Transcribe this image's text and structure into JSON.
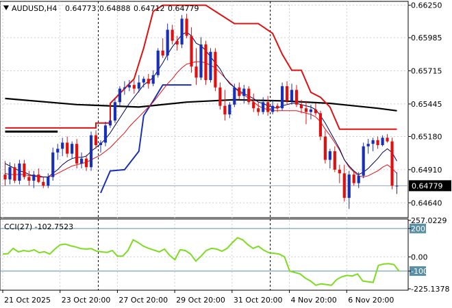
{
  "chart_data": [
    {
      "type": "candlestick",
      "title": "AUDUSD,H4",
      "ohlc": [
        "0.64773",
        "0.64888",
        "0.64712",
        "0.64779"
      ],
      "price_ticks": [
        "0.66250",
        "0.65985",
        "0.65715",
        "0.65445",
        "0.65180",
        "0.64910",
        "0.64640"
      ],
      "ylim": [
        0.6453,
        0.6627
      ],
      "last_price": "0.64779",
      "x_labels": [
        "21 Oct 2025",
        "23 Oct 20:00",
        "27 Oct 20:00",
        "29 Oct 20:00",
        "31 Oct 20:00",
        "4 Nov 20:00",
        "6 Nov 20:00"
      ],
      "colors": {
        "bull": "#1a2fb8",
        "bear": "#e01010",
        "ma_fast": "#000060",
        "ma_mid": "#e01010",
        "ma_long": "#000000",
        "envelope_up": "#e01010",
        "envelope_dn": "#1a2fb8",
        "grid": "#c7cfd6"
      },
      "candles": [
        [
          0.6487,
          0.6498,
          0.6478,
          0.6483
        ],
        [
          0.6483,
          0.6497,
          0.6479,
          0.6493
        ],
        [
          0.6493,
          0.6496,
          0.648,
          0.6482
        ],
        [
          0.6482,
          0.6499,
          0.6479,
          0.6496
        ],
        [
          0.6496,
          0.6499,
          0.6483,
          0.6485
        ],
        [
          0.6485,
          0.649,
          0.6478,
          0.6482
        ],
        [
          0.6482,
          0.649,
          0.6476,
          0.6487
        ],
        [
          0.6487,
          0.6492,
          0.648,
          0.6481
        ],
        [
          0.6481,
          0.6485,
          0.6476,
          0.6478
        ],
        [
          0.6478,
          0.6488,
          0.6476,
          0.6485
        ],
        [
          0.6485,
          0.6509,
          0.6482,
          0.6505
        ],
        [
          0.6505,
          0.6512,
          0.6499,
          0.6508
        ],
        [
          0.6508,
          0.6517,
          0.6502,
          0.6513
        ],
        [
          0.6513,
          0.6518,
          0.6501,
          0.6504
        ],
        [
          0.6504,
          0.6514,
          0.65,
          0.6512
        ],
        [
          0.6512,
          0.6516,
          0.6492,
          0.6496
        ],
        [
          0.6496,
          0.6505,
          0.6492,
          0.65
        ],
        [
          0.65,
          0.6503,
          0.649,
          0.6493
        ],
        [
          0.6493,
          0.6522,
          0.649,
          0.6519
        ],
        [
          0.6519,
          0.6523,
          0.6508,
          0.6511
        ],
        [
          0.6511,
          0.6515,
          0.6505,
          0.6513
        ],
        [
          0.6513,
          0.653,
          0.651,
          0.6527
        ],
        [
          0.6527,
          0.6532,
          0.6525,
          0.6531
        ],
        [
          0.6531,
          0.6549,
          0.6529,
          0.6546
        ],
        [
          0.6546,
          0.6559,
          0.6543,
          0.6557
        ],
        [
          0.6557,
          0.6563,
          0.6552,
          0.6558
        ],
        [
          0.6558,
          0.6564,
          0.6555,
          0.656
        ],
        [
          0.656,
          0.6564,
          0.6553,
          0.6557
        ],
        [
          0.6557,
          0.6568,
          0.6554,
          0.6562
        ],
        [
          0.6562,
          0.6567,
          0.6558,
          0.6565
        ],
        [
          0.6565,
          0.6569,
          0.6557,
          0.6561
        ],
        [
          0.6561,
          0.6572,
          0.6559,
          0.6568
        ],
        [
          0.6568,
          0.659,
          0.6566,
          0.6588
        ],
        [
          0.6588,
          0.6598,
          0.6582,
          0.6584
        ],
        [
          0.6584,
          0.661,
          0.658,
          0.6605
        ],
        [
          0.6605,
          0.6609,
          0.6593,
          0.6596
        ],
        [
          0.6596,
          0.66,
          0.6588,
          0.6593
        ],
        [
          0.6593,
          0.6617,
          0.659,
          0.6614
        ],
        [
          0.6614,
          0.6618,
          0.6598,
          0.66
        ],
        [
          0.66,
          0.6607,
          0.657,
          0.6575
        ],
        [
          0.6575,
          0.659,
          0.656,
          0.6566
        ],
        [
          0.6566,
          0.6599,
          0.6564,
          0.6593
        ],
        [
          0.6593,
          0.6596,
          0.656,
          0.6564
        ],
        [
          0.6564,
          0.659,
          0.6562,
          0.6587
        ],
        [
          0.6587,
          0.659,
          0.6555,
          0.6558
        ],
        [
          0.6558,
          0.6562,
          0.654,
          0.6543
        ],
        [
          0.6543,
          0.6556,
          0.6531,
          0.6536
        ],
        [
          0.6536,
          0.6546,
          0.6533,
          0.6544
        ],
        [
          0.6544,
          0.6561,
          0.6542,
          0.6558
        ],
        [
          0.6558,
          0.6562,
          0.6548,
          0.6551
        ],
        [
          0.6551,
          0.656,
          0.6545,
          0.6557
        ],
        [
          0.6557,
          0.6559,
          0.6544,
          0.6546
        ],
        [
          0.6546,
          0.6553,
          0.6538,
          0.6541
        ],
        [
          0.6541,
          0.6546,
          0.6535,
          0.6538
        ],
        [
          0.6538,
          0.655,
          0.6536,
          0.6546
        ],
        [
          0.6546,
          0.6551,
          0.6535,
          0.6538
        ],
        [
          0.6538,
          0.6548,
          0.6536,
          0.6543
        ],
        [
          0.6543,
          0.6545,
          0.6538,
          0.6541
        ],
        [
          0.6541,
          0.6562,
          0.6539,
          0.6559
        ],
        [
          0.6559,
          0.6563,
          0.6544,
          0.6547
        ],
        [
          0.6547,
          0.6561,
          0.6544,
          0.6556
        ],
        [
          0.6556,
          0.656,
          0.6542,
          0.6544
        ],
        [
          0.6544,
          0.6548,
          0.6537,
          0.6541
        ],
        [
          0.6541,
          0.6547,
          0.6528,
          0.6538
        ],
        [
          0.6538,
          0.6544,
          0.6532,
          0.654
        ],
        [
          0.654,
          0.6545,
          0.6535,
          0.6537
        ],
        [
          0.6537,
          0.6539,
          0.6515,
          0.6518
        ],
        [
          0.6518,
          0.6523,
          0.6496,
          0.6499
        ],
        [
          0.6499,
          0.6508,
          0.6492,
          0.6506
        ],
        [
          0.6506,
          0.651,
          0.6489,
          0.6491
        ],
        [
          0.6491,
          0.6495,
          0.648,
          0.6488
        ],
        [
          0.6488,
          0.6495,
          0.6465,
          0.6468
        ],
        [
          0.6468,
          0.649,
          0.6459,
          0.6487
        ],
        [
          0.6487,
          0.649,
          0.6478,
          0.648
        ],
        [
          0.648,
          0.6489,
          0.6476,
          0.6486
        ],
        [
          0.6486,
          0.6513,
          0.6484,
          0.651
        ],
        [
          0.651,
          0.6516,
          0.6504,
          0.6512
        ],
        [
          0.6512,
          0.6517,
          0.6506,
          0.6515
        ],
        [
          0.6515,
          0.6518,
          0.6508,
          0.6511
        ],
        [
          0.6511,
          0.6519,
          0.651,
          0.6517
        ],
        [
          0.6517,
          0.652,
          0.6513,
          0.6514
        ],
        [
          0.6514,
          0.6517,
          0.6475,
          0.6478
        ],
        [
          0.64773,
          0.64888,
          0.64712,
          0.64779
        ]
      ],
      "ma_fast": [
        0.6496,
        0.6494,
        0.6492,
        0.649,
        0.6489,
        0.6487,
        0.6486,
        0.6485,
        0.6485,
        0.6485,
        0.6488,
        0.6491,
        0.6495,
        0.6498,
        0.65,
        0.6501,
        0.6501,
        0.6502,
        0.6506,
        0.6509,
        0.6512,
        0.6516,
        0.6521,
        0.6527,
        0.6533,
        0.6539,
        0.6545,
        0.655,
        0.6555,
        0.656,
        0.6563,
        0.6566,
        0.6572,
        0.6578,
        0.6585,
        0.6591,
        0.6596,
        0.6601,
        0.6603,
        0.66,
        0.6594,
        0.6592,
        0.6588,
        0.6583,
        0.6578,
        0.6573,
        0.6566,
        0.6561,
        0.6558,
        0.6555,
        0.6553,
        0.6551,
        0.6549,
        0.6546,
        0.6545,
        0.6543,
        0.6542,
        0.6541,
        0.6543,
        0.6544,
        0.6545,
        0.6545,
        0.6544,
        0.6543,
        0.6542,
        0.654,
        0.6535,
        0.6529,
        0.6522,
        0.6515,
        0.6508,
        0.6499,
        0.6494,
        0.649,
        0.6487,
        0.6489,
        0.6492,
        0.6496,
        0.65,
        0.6505,
        0.6508,
        0.6505,
        0.6498
      ],
      "ma_mid": [
        0.6488,
        0.6487,
        0.6487,
        0.6487,
        0.6487,
        0.6486,
        0.6486,
        0.6486,
        0.6485,
        0.6485,
        0.6486,
        0.6488,
        0.649,
        0.6492,
        0.6494,
        0.6495,
        0.6496,
        0.6497,
        0.6499,
        0.6501,
        0.6503,
        0.6506,
        0.6509,
        0.6513,
        0.6517,
        0.6521,
        0.6526,
        0.653,
        0.6534,
        0.6538,
        0.6542,
        0.6546,
        0.6551,
        0.6556,
        0.6561,
        0.6565,
        0.657,
        0.6574,
        0.6577,
        0.6578,
        0.6579,
        0.6579,
        0.6578,
        0.6576,
        0.6574,
        0.657,
        0.6566,
        0.6562,
        0.6558,
        0.6554,
        0.6552,
        0.6549,
        0.6546,
        0.6543,
        0.6541,
        0.654,
        0.6539,
        0.6539,
        0.6539,
        0.6539,
        0.6539,
        0.6539,
        0.6538,
        0.6537,
        0.6536,
        0.6534,
        0.653,
        0.6524,
        0.6519,
        0.6513,
        0.6507,
        0.6499,
        0.6493,
        0.6489,
        0.6486,
        0.6485,
        0.6486,
        0.6488,
        0.649,
        0.6493,
        0.6495,
        0.6492,
        0.6488
      ],
      "ma_long": [
        [
          0,
          0.6549
        ],
        [
          15,
          0.6544
        ],
        [
          28,
          0.6542
        ],
        [
          38,
          0.6546
        ],
        [
          48,
          0.6548
        ],
        [
          58,
          0.6547
        ],
        [
          68,
          0.6545
        ],
        [
          78,
          0.6541
        ],
        [
          82,
          0.6539
        ]
      ],
      "envelope_up": [
        [
          0,
          0.6525
        ],
        [
          19,
          0.6525
        ],
        [
          19,
          0.6529
        ],
        [
          22,
          0.6529
        ],
        [
          22,
          0.6545
        ],
        [
          27,
          0.6565
        ],
        [
          29,
          0.659
        ],
        [
          31,
          0.662
        ],
        [
          33,
          0.6625
        ],
        [
          42,
          0.6625
        ],
        [
          48,
          0.661
        ],
        [
          53,
          0.661
        ],
        [
          56,
          0.6602
        ],
        [
          58,
          0.6585
        ],
        [
          60,
          0.6572
        ],
        [
          62,
          0.6572
        ],
        [
          64,
          0.6554
        ],
        [
          66,
          0.655
        ],
        [
          68,
          0.6542
        ],
        [
          70,
          0.6524
        ],
        [
          82,
          0.6524
        ]
      ],
      "envelope_dn": [
        [
          20,
          0.6472
        ],
        [
          22,
          0.649
        ],
        [
          25,
          0.6491
        ],
        [
          28,
          0.6506
        ],
        [
          29,
          0.6535
        ],
        [
          31,
          0.6547
        ],
        [
          33,
          0.656
        ],
        [
          39,
          0.656
        ]
      ],
      "black_step": [
        [
          0,
          0.6522
        ],
        [
          11,
          0.6522
        ]
      ]
    },
    {
      "type": "line",
      "title": "CCI(27) -102.7523",
      "y_ticks": [
        "257.0229",
        "200",
        "0.00",
        "-100",
        "-225.1378"
      ],
      "ylim": [
        -225.1378,
        257.0229
      ],
      "levels": [
        200,
        0,
        -100
      ],
      "color": "#7cdc1e",
      "values": [
        20,
        22,
        60,
        35,
        45,
        38,
        50,
        30,
        36,
        20,
        55,
        85,
        90,
        78,
        70,
        58,
        55,
        58,
        40,
        35,
        32,
        45,
        5,
        5,
        45,
        120,
        100,
        75,
        60,
        48,
        35,
        55,
        10,
        -20,
        50,
        45,
        20,
        -30,
        5,
        45,
        60,
        55,
        40,
        60,
        100,
        135,
        120,
        85,
        60,
        75,
        48,
        30,
        25,
        20,
        0,
        -100,
        -110,
        -120,
        -150,
        -170,
        -200,
        -190,
        -195,
        -200,
        -160,
        -140,
        -130,
        -135,
        -120,
        -170,
        -175,
        -180,
        -60,
        -50,
        -48,
        -55,
        -102.7523
      ]
    }
  ]
}
